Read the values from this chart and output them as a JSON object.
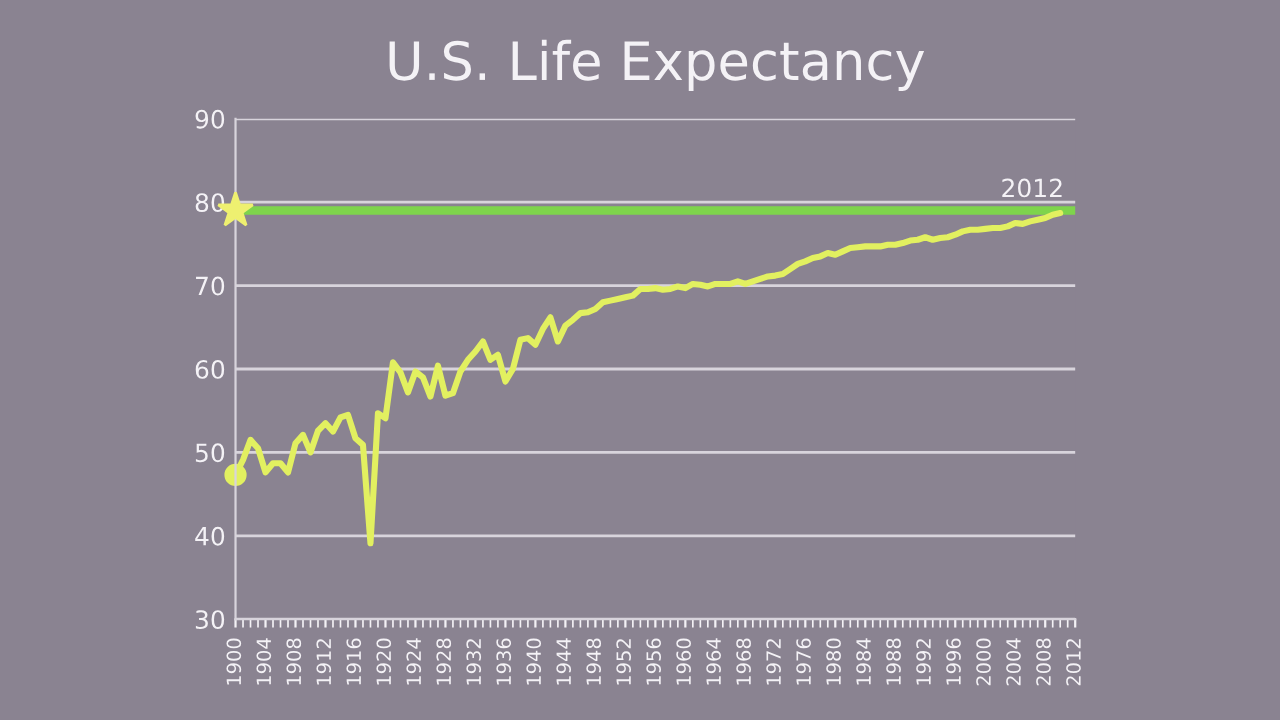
{
  "chart_data": {
    "type": "line",
    "title": "U.S. Life Expectancy",
    "x": [
      1900,
      1901,
      1902,
      1903,
      1904,
      1905,
      1906,
      1907,
      1908,
      1909,
      1910,
      1911,
      1912,
      1913,
      1914,
      1915,
      1916,
      1917,
      1918,
      1919,
      1920,
      1921,
      1922,
      1923,
      1924,
      1925,
      1926,
      1927,
      1928,
      1929,
      1930,
      1931,
      1932,
      1933,
      1934,
      1935,
      1936,
      1937,
      1938,
      1939,
      1940,
      1941,
      1942,
      1943,
      1944,
      1945,
      1946,
      1947,
      1948,
      1949,
      1950,
      1951,
      1952,
      1953,
      1954,
      1955,
      1956,
      1957,
      1958,
      1959,
      1960,
      1961,
      1962,
      1963,
      1964,
      1965,
      1966,
      1967,
      1968,
      1969,
      1970,
      1971,
      1972,
      1973,
      1974,
      1975,
      1976,
      1977,
      1978,
      1979,
      1980,
      1981,
      1982,
      1983,
      1984,
      1985,
      1986,
      1987,
      1988,
      1989,
      1990,
      1991,
      1992,
      1993,
      1994,
      1995,
      1996,
      1997,
      1998,
      1999,
      2000,
      2001,
      2002,
      2003,
      2004,
      2005,
      2006,
      2007,
      2008,
      2009,
      2010
    ],
    "series": [
      {
        "color": "#e2f060",
        "values": [
          47.3,
          49.1,
          51.5,
          50.5,
          47.6,
          48.7,
          48.7,
          47.6,
          51.1,
          52.1,
          50.0,
          52.6,
          53.5,
          52.5,
          54.2,
          54.5,
          51.7,
          50.9,
          39.1,
          54.7,
          54.1,
          60.8,
          59.6,
          57.2,
          59.7,
          59.0,
          56.7,
          60.4,
          56.8,
          57.1,
          59.7,
          61.1,
          62.1,
          63.3,
          61.1,
          61.7,
          58.5,
          60.0,
          63.5,
          63.7,
          62.9,
          64.8,
          66.2,
          63.3,
          65.2,
          65.9,
          66.7,
          66.8,
          67.2,
          68.0,
          68.2,
          68.4,
          68.6,
          68.8,
          69.6,
          69.6,
          69.7,
          69.5,
          69.6,
          69.9,
          69.7,
          70.2,
          70.1,
          69.9,
          70.2,
          70.2,
          70.2,
          70.5,
          70.2,
          70.5,
          70.8,
          71.1,
          71.2,
          71.4,
          72.0,
          72.6,
          72.9,
          73.3,
          73.5,
          73.9,
          73.7,
          74.1,
          74.5,
          74.6,
          74.7,
          74.7,
          74.7,
          74.9,
          74.9,
          75.1,
          75.4,
          75.5,
          75.8,
          75.5,
          75.7,
          75.8,
          76.1,
          76.5,
          76.7,
          76.7,
          76.8,
          76.9,
          76.9,
          77.1,
          77.5,
          77.4,
          77.7,
          77.9,
          78.1,
          78.5,
          78.7
        ]
      }
    ],
    "ref_lines": [
      {
        "axis": "y",
        "value": 79,
        "color": "#7ed44c"
      }
    ],
    "annotations": [
      {
        "text": "2012",
        "x": 2012,
        "y": 79
      }
    ],
    "xlim": [
      1900,
      2012
    ],
    "xticks": [
      1900,
      1904,
      1908,
      1912,
      1916,
      1920,
      1924,
      1928,
      1932,
      1936,
      1940,
      1944,
      1948,
      1952,
      1956,
      1960,
      1964,
      1968,
      1972,
      1976,
      1980,
      1984,
      1988,
      1992,
      1996,
      2000,
      2004,
      2008,
      2012
    ],
    "ylim": [
      30,
      90
    ],
    "yticks": [
      30,
      40,
      50,
      60,
      70,
      80,
      90
    ],
    "grid": "y",
    "marker": "none",
    "line_style": "solid"
  }
}
